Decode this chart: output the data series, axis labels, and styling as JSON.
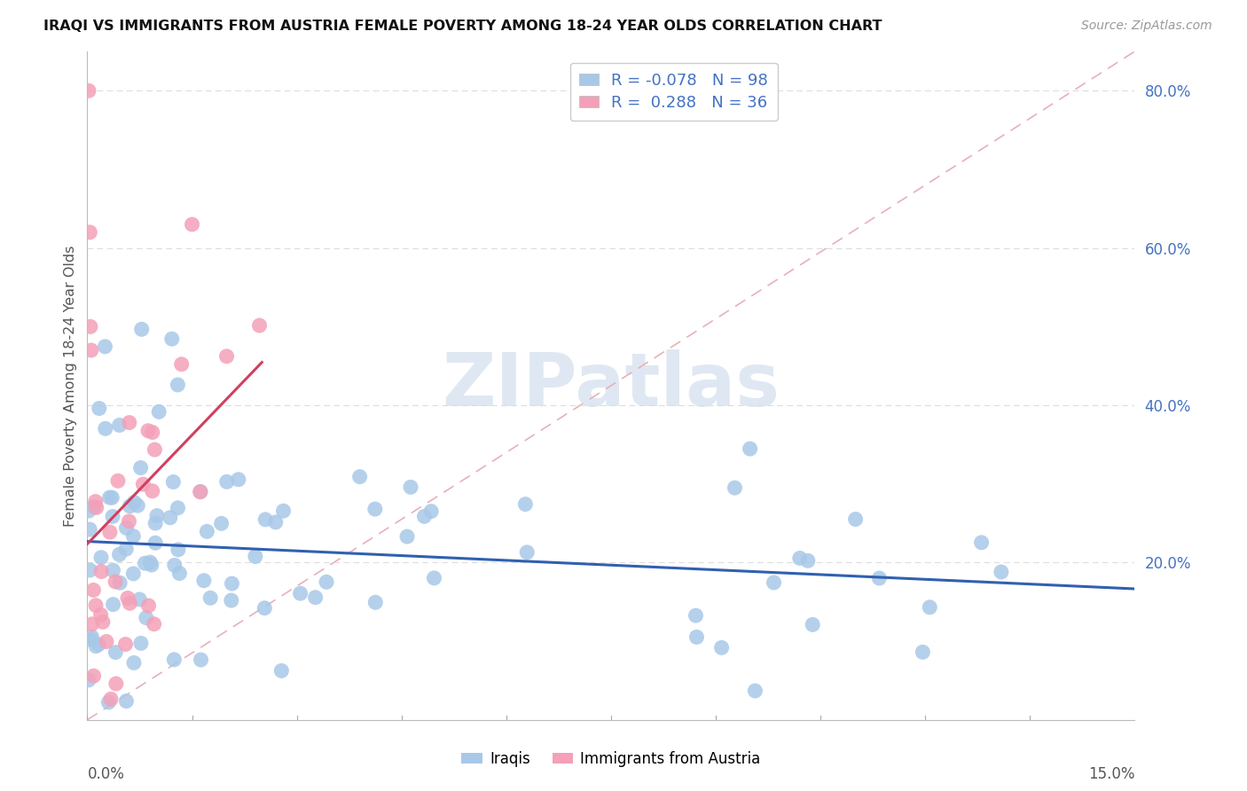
{
  "title": "IRAQI VS IMMIGRANTS FROM AUSTRIA FEMALE POVERTY AMONG 18-24 YEAR OLDS CORRELATION CHART",
  "source": "Source: ZipAtlas.com",
  "ylabel": "Female Poverty Among 18-24 Year Olds",
  "xlim": [
    0,
    0.15
  ],
  "ylim": [
    0,
    0.85
  ],
  "yticks": [
    0.2,
    0.4,
    0.6,
    0.8
  ],
  "ytick_labels": [
    "20.0%",
    "40.0%",
    "60.0%",
    "80.0%"
  ],
  "watermark": "ZIPatlas",
  "legend_r_iraqis": "-0.078",
  "legend_n_iraqis": "98",
  "legend_r_austria": "0.288",
  "legend_n_austria": "36",
  "iraqis_color": "#a8c8e8",
  "austria_color": "#f4a0b8",
  "iraqis_line_color": "#3060b0",
  "austria_line_color": "#d04060",
  "diag_line_color": "#e8b0b8",
  "background_color": "#ffffff",
  "grid_color": "#dddddd",
  "title_color": "#111111",
  "source_color": "#999999",
  "axis_label_color": "#555555",
  "right_tick_color": "#4472c4",
  "iraqis_seed": 1234,
  "austria_seed": 5678
}
